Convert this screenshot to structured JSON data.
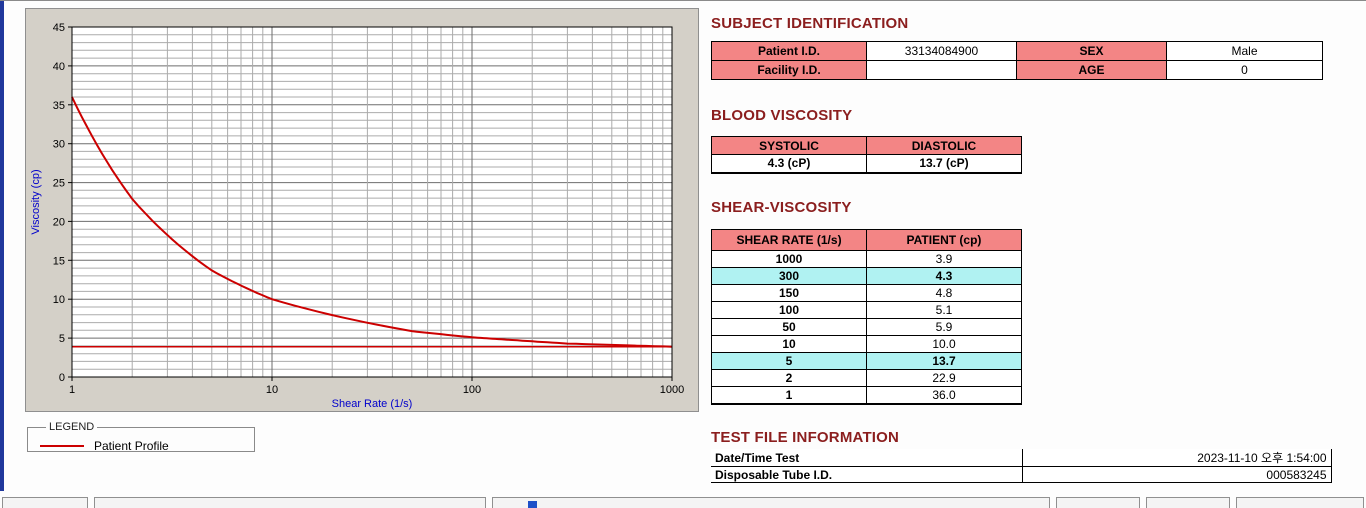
{
  "colors": {
    "heading": "#8b1e1e",
    "table_header_pink": "#f38585",
    "highlight_cyan": "#b0f2f2",
    "series_red": "#cc0000",
    "axis_label_blue": "#0000cc"
  },
  "legend": {
    "box_label": "LEGEND",
    "series_label": "Patient Profile"
  },
  "subject_identification": {
    "title": "SUBJECT IDENTIFICATION",
    "rows": [
      [
        "Patient I.D.",
        "33134084900",
        "SEX",
        "Male"
      ],
      [
        "Facility I.D.",
        "",
        "AGE",
        "0"
      ]
    ]
  },
  "blood_viscosity": {
    "title": "BLOOD VISCOSITY",
    "headers": [
      "SYSTOLIC",
      "DIASTOLIC"
    ],
    "values": [
      "4.3 (cP)",
      "13.7 (cP)"
    ]
  },
  "shear_viscosity": {
    "title": "SHEAR-VISCOSITY",
    "headers": [
      "SHEAR RATE (1/s)",
      "PATIENT (cp)"
    ],
    "rows": [
      [
        "1000",
        "3.9"
      ],
      [
        "300",
        "4.3"
      ],
      [
        "150",
        "4.8"
      ],
      [
        "100",
        "5.1"
      ],
      [
        "50",
        "5.9"
      ],
      [
        "10",
        "10.0"
      ],
      [
        "5",
        "13.7"
      ],
      [
        "2",
        "22.9"
      ],
      [
        "1",
        "36.0"
      ]
    ],
    "highlight_rows": [
      1,
      6
    ]
  },
  "test_file_information": {
    "title": "TEST FILE INFORMATION",
    "rows": [
      {
        "label": "Date/Time Test",
        "value": "2023-11-10  오후 1:54:00"
      },
      {
        "label": "Disposable Tube I.D.",
        "value": "000583245"
      }
    ]
  },
  "chart_data": {
    "type": "line",
    "title": "",
    "xlabel": "Shear Rate (1/s)",
    "ylabel": "Viscosity (cp)",
    "x_scale": "log",
    "xlim": [
      1,
      1000
    ],
    "ylim": [
      0,
      45
    ],
    "y_major_ticks": [
      0,
      5,
      10,
      15,
      20,
      25,
      30,
      35,
      40,
      45
    ],
    "y_minor_step": 1,
    "x_ticks": [
      1,
      10,
      100,
      1000
    ],
    "grid": true,
    "legend_position": "below-left",
    "series": [
      {
        "name": "Patient Profile",
        "color": "#cc0000",
        "x": [
          1,
          2,
          5,
          10,
          50,
          100,
          150,
          300,
          1000
        ],
        "y": [
          36.0,
          22.9,
          13.7,
          10.0,
          5.9,
          5.1,
          4.8,
          4.3,
          3.9
        ]
      }
    ],
    "reference_line_y": 3.9
  }
}
